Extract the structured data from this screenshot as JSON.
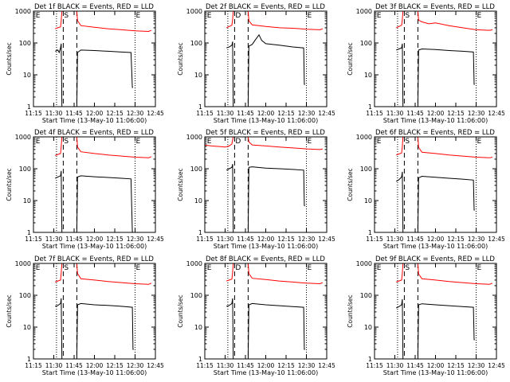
{
  "figure": {
    "xlabel": "Start Time (13-May-10 11:06:00)",
    "ylabel": "Counts/sec",
    "x_ticks": [
      "11:15",
      "11:30",
      "11:45",
      "12:00",
      "12:15",
      "12:30",
      "12:45"
    ],
    "y_ticks": [
      "1",
      "10",
      "100",
      "1000"
    ],
    "markers": {
      "start": "S",
      "end": "E",
      "detector": "D"
    },
    "colors": {
      "events": "#000000",
      "lld": "#ff0000",
      "markers": "#000000"
    }
  },
  "chart_data": [
    {
      "type": "line",
      "title": "Det 1f BLACK = Events, RED = LLD",
      "xlabel": "Start Time (13-May-10 11:06:00)",
      "ylabel": "Counts/sec",
      "x_range_min": [
        675,
        765
      ],
      "y_range": [
        1,
        1000
      ],
      "y_scale": "log",
      "grid": false,
      "x_ticks": [
        "11:15",
        "11:30",
        "11:45",
        "12:00",
        "12:15",
        "12:30",
        "12:45"
      ],
      "vlines": {
        "dotted_min": [
          692,
          750
        ],
        "dashed_min": [
          697,
          707
        ]
      },
      "marker_labels": [
        {
          "text": "E",
          "x_min": 676
        },
        {
          "text": "S",
          "x_min": 697
        },
        {
          "text": "E",
          "x_min": 750
        }
      ],
      "series": [
        {
          "name": "LLD",
          "color": "#ff0000",
          "x": [
            691,
            693,
            695,
            695.5,
            696,
            707,
            707.5,
            710,
            720,
            730,
            740,
            750,
            760,
            762
          ],
          "y": [
            280,
            300,
            320,
            500,
            1000,
            1000,
            500,
            350,
            310,
            280,
            260,
            240,
            230,
            250
          ]
        },
        {
          "name": "Events",
          "color": "#000000",
          "x": [
            691,
            693,
            694,
            695,
            695.5,
            696,
            707,
            707.5,
            710,
            720,
            730,
            740,
            747,
            748,
            748.5
          ],
          "y": [
            55,
            60,
            50,
            70,
            95,
            1,
            1,
            50,
            60,
            58,
            55,
            52,
            50,
            4,
            4
          ]
        }
      ]
    },
    {
      "type": "line",
      "title": "Det 2f BLACK = Events, RED = LLD",
      "xlabel": "Start Time (13-May-10 11:06:00)",
      "ylabel": "Counts/sec",
      "x_range_min": [
        675,
        765
      ],
      "y_range": [
        1,
        1000
      ],
      "y_scale": "log",
      "grid": false,
      "x_ticks": [
        "11:15",
        "11:30",
        "11:45",
        "12:00",
        "12:15",
        "12:30",
        "12:45"
      ],
      "vlines": {
        "dotted_min": [
          692,
          750
        ],
        "dashed_min": [
          697,
          707
        ]
      },
      "marker_labels": [
        {
          "text": "E",
          "x_min": 676
        },
        {
          "text": "D",
          "x_min": 697
        },
        {
          "text": "E",
          "x_min": 750
        }
      ],
      "series": [
        {
          "name": "LLD",
          "color": "#ff0000",
          "x": [
            691,
            693,
            695,
            695.5,
            696,
            707,
            707.5,
            710,
            720,
            730,
            740,
            750,
            760,
            762
          ],
          "y": [
            300,
            330,
            360,
            550,
            1000,
            1000,
            500,
            370,
            330,
            300,
            290,
            270,
            260,
            280
          ]
        },
        {
          "name": "Events",
          "color": "#000000",
          "x": [
            691,
            693,
            695,
            695.5,
            696,
            707,
            707.5,
            710,
            712,
            715,
            717,
            720,
            730,
            740,
            748,
            748.5,
            749
          ],
          "y": [
            70,
            75,
            85,
            110,
            1,
            1,
            80,
            90,
            120,
            180,
            120,
            95,
            85,
            75,
            70,
            5,
            5
          ]
        }
      ]
    },
    {
      "type": "line",
      "title": "Det 3f BLACK = Events, RED = LLD",
      "xlabel": "Start Time (13-May-10 11:06:00)",
      "ylabel": "Counts/sec",
      "x_range_min": [
        675,
        765
      ],
      "y_range": [
        1,
        1000
      ],
      "y_scale": "log",
      "grid": false,
      "x_ticks": [
        "11:15",
        "11:30",
        "11:45",
        "12:00",
        "12:15",
        "12:30",
        "12:45"
      ],
      "vlines": {
        "dotted_min": [
          692,
          750
        ],
        "dashed_min": [
          697,
          707
        ]
      },
      "marker_labels": [
        {
          "text": "E",
          "x_min": 676
        },
        {
          "text": "S",
          "x_min": 697
        },
        {
          "text": "E",
          "x_min": 750
        }
      ],
      "series": [
        {
          "name": "LLD",
          "color": "#ff0000",
          "x": [
            691,
            693,
            695,
            695.5,
            696,
            707,
            707.5,
            710,
            715,
            720,
            730,
            740,
            750,
            760,
            762
          ],
          "y": [
            300,
            330,
            360,
            550,
            1000,
            1000,
            520,
            460,
            400,
            430,
            350,
            300,
            260,
            250,
            260
          ]
        },
        {
          "name": "Events",
          "color": "#000000",
          "x": [
            691,
            693,
            695,
            695.5,
            696,
            707,
            707.5,
            710,
            720,
            730,
            740,
            748,
            748.5,
            749
          ],
          "y": [
            60,
            65,
            70,
            95,
            1,
            1,
            60,
            65,
            62,
            58,
            55,
            52,
            5,
            5
          ]
        }
      ]
    },
    {
      "type": "line",
      "title": "Det 4f BLACK = Events, RED = LLD",
      "xlabel": "Start Time (13-May-10 11:06:00)",
      "ylabel": "Counts/sec",
      "x_range_min": [
        675,
        765
      ],
      "y_range": [
        1,
        1000
      ],
      "y_scale": "log",
      "grid": false,
      "x_ticks": [
        "11:15",
        "11:30",
        "11:45",
        "12:00",
        "12:15",
        "12:30",
        "12:45"
      ],
      "vlines": {
        "dotted_min": [
          692,
          750
        ],
        "dashed_min": [
          697,
          707
        ]
      },
      "marker_labels": [
        {
          "text": "E",
          "x_min": 676
        },
        {
          "text": "S",
          "x_min": 697
        },
        {
          "text": "E",
          "x_min": 750
        }
      ],
      "series": [
        {
          "name": "LLD",
          "color": "#ff0000",
          "x": [
            691,
            693,
            695,
            695.5,
            696,
            707,
            707.5,
            710,
            720,
            730,
            740,
            750,
            760,
            762
          ],
          "y": [
            260,
            280,
            300,
            500,
            1000,
            1000,
            480,
            340,
            300,
            270,
            250,
            230,
            220,
            240
          ]
        },
        {
          "name": "Events",
          "color": "#000000",
          "x": [
            691,
            693,
            695,
            695.5,
            696,
            707,
            707.5,
            710,
            720,
            730,
            740,
            747,
            748,
            748.5
          ],
          "y": [
            50,
            55,
            60,
            85,
            1,
            1,
            55,
            60,
            56,
            53,
            50,
            48,
            1,
            1
          ]
        }
      ]
    },
    {
      "type": "line",
      "title": "Det 5f BLACK = Events, RED = LLD",
      "xlabel": "Start Time (13-May-10 11:06:00)",
      "ylabel": "Counts/sec",
      "x_range_min": [
        675,
        765
      ],
      "y_range": [
        1,
        1000
      ],
      "y_scale": "log",
      "grid": false,
      "x_ticks": [
        "11:15",
        "11:30",
        "11:45",
        "12:00",
        "12:15",
        "12:30",
        "12:45"
      ],
      "vlines": {
        "dotted_min": [
          692,
          750
        ],
        "dashed_min": [
          697,
          707
        ]
      },
      "marker_labels": [
        {
          "text": "E",
          "x_min": 676
        },
        {
          "text": "D",
          "x_min": 697
        },
        {
          "text": "E",
          "x_min": 750
        }
      ],
      "series": [
        {
          "name": "LLD",
          "color": "#ff0000",
          "x": [
            675,
            680,
            685,
            690,
            693,
            695,
            695.5,
            696,
            707,
            707.5,
            710,
            720,
            730,
            740,
            750,
            760,
            762
          ],
          "y": [
            550,
            520,
            500,
            480,
            520,
            600,
            800,
            1000,
            1000,
            700,
            560,
            520,
            480,
            450,
            420,
            400,
            420
          ]
        },
        {
          "name": "Events",
          "color": "#000000",
          "x": [
            691,
            693,
            695,
            695.5,
            696,
            707,
            707.5,
            710,
            720,
            730,
            740,
            748,
            748.5,
            749
          ],
          "y": [
            90,
            100,
            110,
            140,
            1,
            1,
            110,
            115,
            105,
            100,
            95,
            90,
            7,
            7
          ]
        }
      ]
    },
    {
      "type": "line",
      "title": "Det 6f BLACK = Events, RED = LLD",
      "xlabel": "Start Time (13-May-10 11:06:00)",
      "ylabel": "Counts/sec",
      "x_range_min": [
        675,
        765
      ],
      "y_range": [
        1,
        1000
      ],
      "y_scale": "log",
      "grid": false,
      "x_ticks": [
        "11:15",
        "11:30",
        "11:45",
        "12:00",
        "12:15",
        "12:30",
        "12:45"
      ],
      "vlines": {
        "dotted_min": [
          692,
          750
        ],
        "dashed_min": [
          697,
          707
        ]
      },
      "marker_labels": [
        {
          "text": "E",
          "x_min": 676
        },
        {
          "text": "S",
          "x_min": 697
        },
        {
          "text": "E",
          "x_min": 750
        }
      ],
      "series": [
        {
          "name": "LLD",
          "color": "#ff0000",
          "x": [
            691,
            693,
            695,
            695.5,
            696,
            707,
            707.5,
            710,
            720,
            730,
            740,
            750,
            760,
            762
          ],
          "y": [
            270,
            290,
            310,
            500,
            1000,
            1000,
            470,
            330,
            300,
            270,
            250,
            230,
            220,
            230
          ]
        },
        {
          "name": "Events",
          "color": "#000000",
          "x": [
            691,
            693,
            695,
            695.5,
            696,
            707,
            707.5,
            710,
            720,
            730,
            740,
            748,
            748.5,
            749
          ],
          "y": [
            40,
            45,
            55,
            80,
            1,
            1,
            52,
            58,
            54,
            50,
            47,
            44,
            5,
            5
          ]
        }
      ]
    },
    {
      "type": "line",
      "title": "Det 7f BLACK = Events, RED = LLD",
      "xlabel": "Start Time (13-May-10 11:06:00)",
      "ylabel": "Counts/sec",
      "x_range_min": [
        675,
        765
      ],
      "y_range": [
        1,
        1000
      ],
      "y_scale": "log",
      "grid": false,
      "x_ticks": [
        "11:15",
        "11:30",
        "11:45",
        "12:00",
        "12:15",
        "12:30",
        "12:45"
      ],
      "vlines": {
        "dotted_min": [
          692,
          750
        ],
        "dashed_min": [
          697,
          707
        ]
      },
      "marker_labels": [
        {
          "text": "E",
          "x_min": 676
        },
        {
          "text": "S",
          "x_min": 697
        },
        {
          "text": "E",
          "x_min": 750
        }
      ],
      "series": [
        {
          "name": "LLD",
          "color": "#ff0000",
          "x": [
            691,
            693,
            695,
            695.5,
            696,
            707,
            707.5,
            710,
            720,
            730,
            740,
            750,
            760,
            762
          ],
          "y": [
            260,
            280,
            300,
            500,
            1000,
            1000,
            480,
            330,
            300,
            270,
            250,
            230,
            220,
            240
          ]
        },
        {
          "name": "Events",
          "color": "#000000",
          "x": [
            691,
            693,
            695,
            695.5,
            696,
            707,
            707.5,
            710,
            720,
            730,
            740,
            748,
            748.5,
            749
          ],
          "y": [
            45,
            48,
            55,
            80,
            1,
            1,
            50,
            55,
            50,
            48,
            45,
            42,
            2,
            2
          ]
        }
      ]
    },
    {
      "type": "line",
      "title": "Det 8f BLACK = Events, RED = LLD",
      "xlabel": "Start Time (13-May-10 11:06:00)",
      "ylabel": "Counts/sec",
      "x_range_min": [
        675,
        765
      ],
      "y_range": [
        1,
        1000
      ],
      "y_scale": "log",
      "grid": false,
      "x_ticks": [
        "11:15",
        "11:30",
        "11:45",
        "12:00",
        "12:15",
        "12:30",
        "12:45"
      ],
      "vlines": {
        "dotted_min": [
          692,
          750
        ],
        "dashed_min": [
          697,
          707
        ]
      },
      "marker_labels": [
        {
          "text": "E",
          "x_min": 676
        },
        {
          "text": "D",
          "x_min": 697
        },
        {
          "text": "E",
          "x_min": 750
        }
      ],
      "series": [
        {
          "name": "LLD",
          "color": "#ff0000",
          "x": [
            691,
            693,
            695,
            695.5,
            696,
            707,
            707.5,
            710,
            720,
            730,
            740,
            750,
            760,
            762
          ],
          "y": [
            280,
            300,
            320,
            520,
            1000,
            1000,
            480,
            340,
            310,
            280,
            260,
            240,
            230,
            250
          ]
        },
        {
          "name": "Events",
          "color": "#000000",
          "x": [
            691,
            693,
            695,
            695.5,
            696,
            707,
            707.5,
            710,
            720,
            730,
            740,
            748,
            748.5,
            749
          ],
          "y": [
            45,
            48,
            55,
            80,
            1,
            1,
            50,
            55,
            50,
            47,
            44,
            42,
            2,
            2
          ]
        }
      ]
    },
    {
      "type": "line",
      "title": "Det 9f BLACK = Events, RED = LLD",
      "xlabel": "Start Time (13-May-10 11:06:00)",
      "ylabel": "Counts/sec",
      "x_range_min": [
        675,
        765
      ],
      "y_range": [
        1,
        1000
      ],
      "y_scale": "log",
      "grid": false,
      "x_ticks": [
        "11:15",
        "11:30",
        "11:45",
        "12:00",
        "12:15",
        "12:30",
        "12:45"
      ],
      "vlines": {
        "dotted_min": [
          692,
          750
        ],
        "dashed_min": [
          697,
          707
        ]
      },
      "marker_labels": [
        {
          "text": "E",
          "x_min": 676
        },
        {
          "text": "S",
          "x_min": 697
        },
        {
          "text": "E",
          "x_min": 750
        }
      ],
      "series": [
        {
          "name": "LLD",
          "color": "#ff0000",
          "x": [
            691,
            693,
            695,
            695.5,
            696,
            707,
            707.5,
            710,
            720,
            730,
            740,
            750,
            760,
            762
          ],
          "y": [
            260,
            280,
            300,
            500,
            1000,
            1000,
            470,
            330,
            300,
            270,
            250,
            230,
            220,
            240
          ]
        },
        {
          "name": "Events",
          "color": "#000000",
          "x": [
            691,
            693,
            695,
            695.5,
            696,
            707,
            707.5,
            710,
            720,
            730,
            740,
            748,
            748.5,
            749
          ],
          "y": [
            40,
            44,
            50,
            75,
            1,
            1,
            50,
            54,
            50,
            47,
            44,
            42,
            4,
            4
          ]
        }
      ]
    }
  ]
}
